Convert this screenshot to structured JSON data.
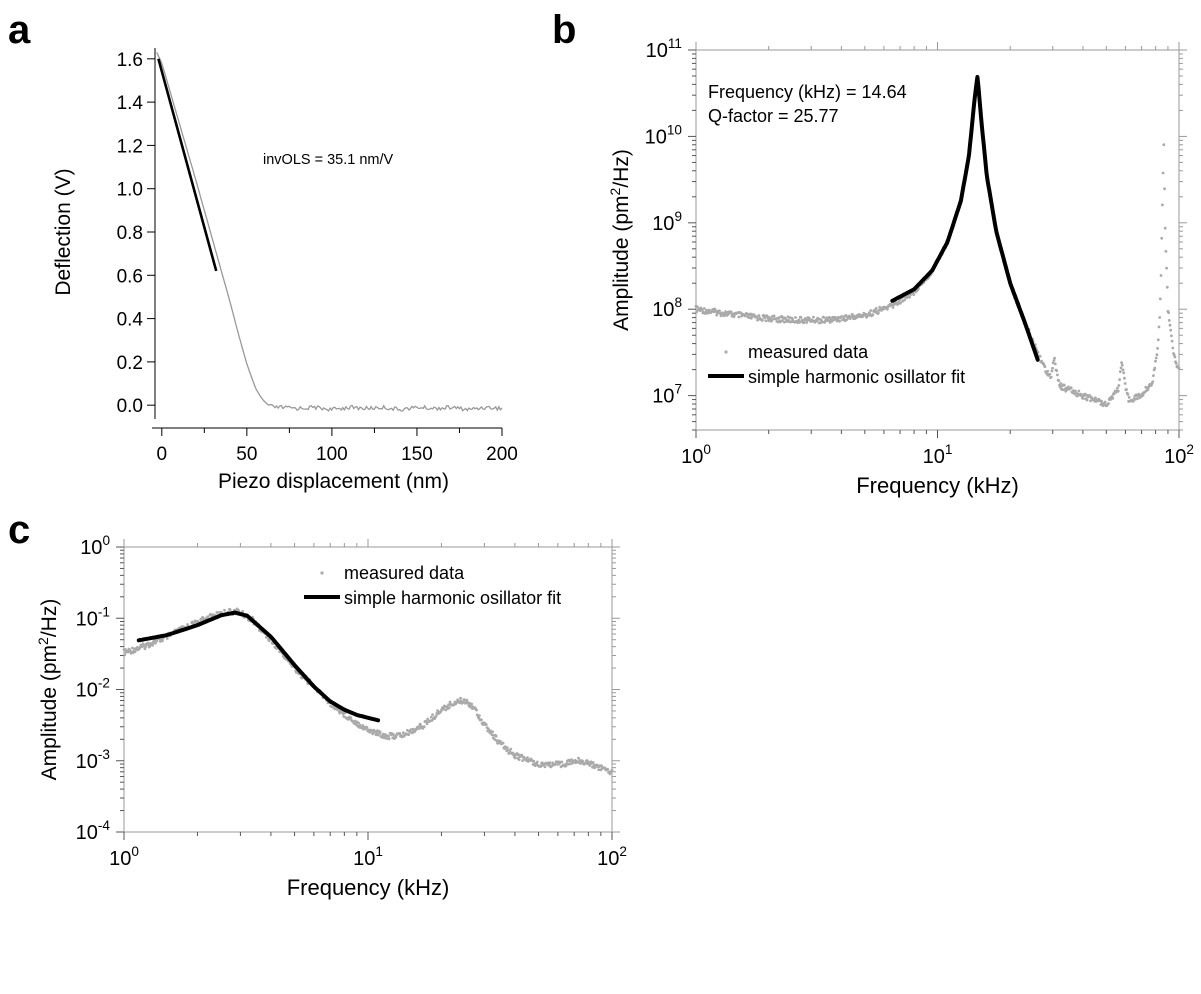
{
  "panels": {
    "a": "a",
    "b": "b",
    "c": "c"
  },
  "chart_data": [
    {
      "id": "a",
      "type": "line",
      "xlabel": "Piezo displacement (nm)",
      "ylabel": "Deflection (V)",
      "xlim": [
        -4,
        200
      ],
      "ylim": [
        -0.05,
        1.65
      ],
      "xticks": [
        0,
        50,
        100,
        150,
        200
      ],
      "yticks": [
        0.0,
        0.2,
        0.4,
        0.6,
        0.8,
        1.0,
        1.2,
        1.4,
        1.6
      ],
      "ytick_labels": [
        "0.0",
        "0.2",
        "0.4",
        "0.6",
        "0.8",
        "1.0",
        "1.2",
        "1.4",
        "1.6"
      ],
      "annotation": "invOLS = 35.1 nm/V",
      "grid": false,
      "series": [
        {
          "role": "measured",
          "color": "#999999",
          "x": [
            -3,
            0,
            10,
            20,
            30,
            35,
            40,
            45,
            50,
            55,
            58,
            60,
            62,
            64,
            66,
            70,
            80,
            90,
            100,
            110,
            120,
            130,
            140,
            150,
            160,
            170,
            180,
            190,
            200
          ],
          "y": [
            1.63,
            1.58,
            1.31,
            1.04,
            0.76,
            0.62,
            0.48,
            0.33,
            0.19,
            0.08,
            0.04,
            0.02,
            0.005,
            -0.005,
            -0.01,
            -0.01,
            -0.015,
            -0.01,
            -0.02,
            -0.01,
            -0.015,
            -0.01,
            -0.02,
            -0.01,
            -0.015,
            -0.01,
            -0.02,
            -0.01,
            -0.015
          ]
        },
        {
          "role": "fit",
          "color": "#000000",
          "x": [
            -2,
            32
          ],
          "y": [
            1.6,
            0.62
          ]
        }
      ]
    },
    {
      "id": "b",
      "type": "line",
      "xlabel": "Frequency (kHz)",
      "ylabel": "Amplitude (pm²/Hz)",
      "xscale": "log",
      "yscale": "log",
      "xlim": [
        1,
        100
      ],
      "ylim": [
        4000000,
        100000000000
      ],
      "xtick_exponents": [
        0,
        1,
        2
      ],
      "ytick_exponents": [
        7,
        8,
        9,
        10,
        11
      ],
      "annotations": [
        "Frequency (kHz) = 14.64",
        "Q-factor = 25.77"
      ],
      "legend": {
        "position": "bottom-left",
        "entries": [
          "measured data",
          "simple harmonic osillator fit"
        ]
      },
      "grid": false,
      "series": [
        {
          "name": "measured data",
          "color": "#aaaaaa",
          "x": [
            1,
            1.3,
            1.8,
            2.5,
            3.5,
            5,
            6.5,
            8,
            9.5,
            11,
            12.5,
            13.5,
            14.2,
            14.64,
            15.2,
            16,
            17.5,
            20,
            23,
            26,
            28,
            29.5,
            30.5,
            32,
            40,
            50,
            56,
            58,
            60,
            62,
            70,
            78,
            82,
            84,
            85,
            86.5,
            87.5,
            90,
            95,
            100
          ],
          "y": [
            100000000.0,
            90000000.0,
            80000000.0,
            75000000.0,
            75000000.0,
            85000000.0,
            110000000.0,
            160000000.0,
            280000000.0,
            600000000.0,
            1800000000.0,
            6000000000.0,
            25000000000.0,
            50000000000.0,
            15000000000.0,
            3500000000.0,
            800000000.0,
            200000000.0,
            70000000.0,
            32000000.0,
            20000000.0,
            17000000.0,
            26000000.0,
            13000000.0,
            10000000.0,
            8000000.0,
            12000000.0,
            25000000.0,
            12000000.0,
            9000000.0,
            10000000.0,
            15000000.0,
            40000000.0,
            150000000.0,
            1000000000.0,
            8000000000.0,
            1000000000.0,
            100000000.0,
            30000000.0,
            20000000.0
          ]
        },
        {
          "name": "simple harmonic osillator fit",
          "color": "#000000",
          "x": [
            6.5,
            8,
            9.5,
            11,
            12.5,
            13.5,
            14.2,
            14.64,
            15.2,
            16,
            17.5,
            20,
            23,
            26
          ],
          "y": [
            125000000.0,
            170000000.0,
            280000000.0,
            600000000.0,
            1800000000.0,
            6000000000.0,
            25000000000.0,
            50000000000.0,
            15000000000.0,
            3500000000.0,
            800000000.0,
            200000000.0,
            70000000.0,
            26000000.0
          ]
        }
      ]
    },
    {
      "id": "c",
      "type": "line",
      "xlabel": "Frequency (kHz)",
      "ylabel": "Amplitude (pm²/Hz)",
      "xscale": "log",
      "yscale": "log",
      "xlim": [
        1,
        100
      ],
      "ylim": [
        0.0001,
        1
      ],
      "xtick_exponents": [
        0,
        1,
        2
      ],
      "ytick_exponents": [
        -4,
        -3,
        -2,
        -1,
        0
      ],
      "legend": {
        "position": "top-right",
        "entries": [
          "measured data",
          "simple harmonic osillator fit"
        ]
      },
      "grid": false,
      "series": [
        {
          "name": "measured data",
          "color": "#aaaaaa",
          "x": [
            1,
            1.2,
            1.5,
            1.8,
            2.2,
            2.6,
            2.9,
            3.3,
            4,
            5,
            6,
            7,
            8,
            9,
            10,
            12,
            14,
            17,
            20,
            23,
            25,
            27,
            30,
            35,
            40,
            50,
            60,
            70,
            75,
            80,
            90,
            100
          ],
          "y": [
            0.033,
            0.04,
            0.055,
            0.075,
            0.1,
            0.12,
            0.125,
            0.1,
            0.05,
            0.02,
            0.011,
            0.0065,
            0.0045,
            0.0034,
            0.0027,
            0.0022,
            0.0023,
            0.0032,
            0.0052,
            0.0068,
            0.007,
            0.0058,
            0.0032,
            0.0017,
            0.0012,
            0.0009,
            0.00088,
            0.00098,
            0.001,
            0.00093,
            0.0008,
            0.0007
          ]
        },
        {
          "name": "simple harmonic osillator fit",
          "color": "#000000",
          "x": [
            1.15,
            1.5,
            2,
            2.5,
            2.85,
            3.2,
            4,
            5,
            6,
            7,
            8,
            9,
            10,
            11
          ],
          "y": [
            0.049,
            0.058,
            0.08,
            0.11,
            0.12,
            0.108,
            0.055,
            0.022,
            0.011,
            0.0068,
            0.0052,
            0.0044,
            0.004,
            0.0037
          ]
        }
      ]
    }
  ]
}
